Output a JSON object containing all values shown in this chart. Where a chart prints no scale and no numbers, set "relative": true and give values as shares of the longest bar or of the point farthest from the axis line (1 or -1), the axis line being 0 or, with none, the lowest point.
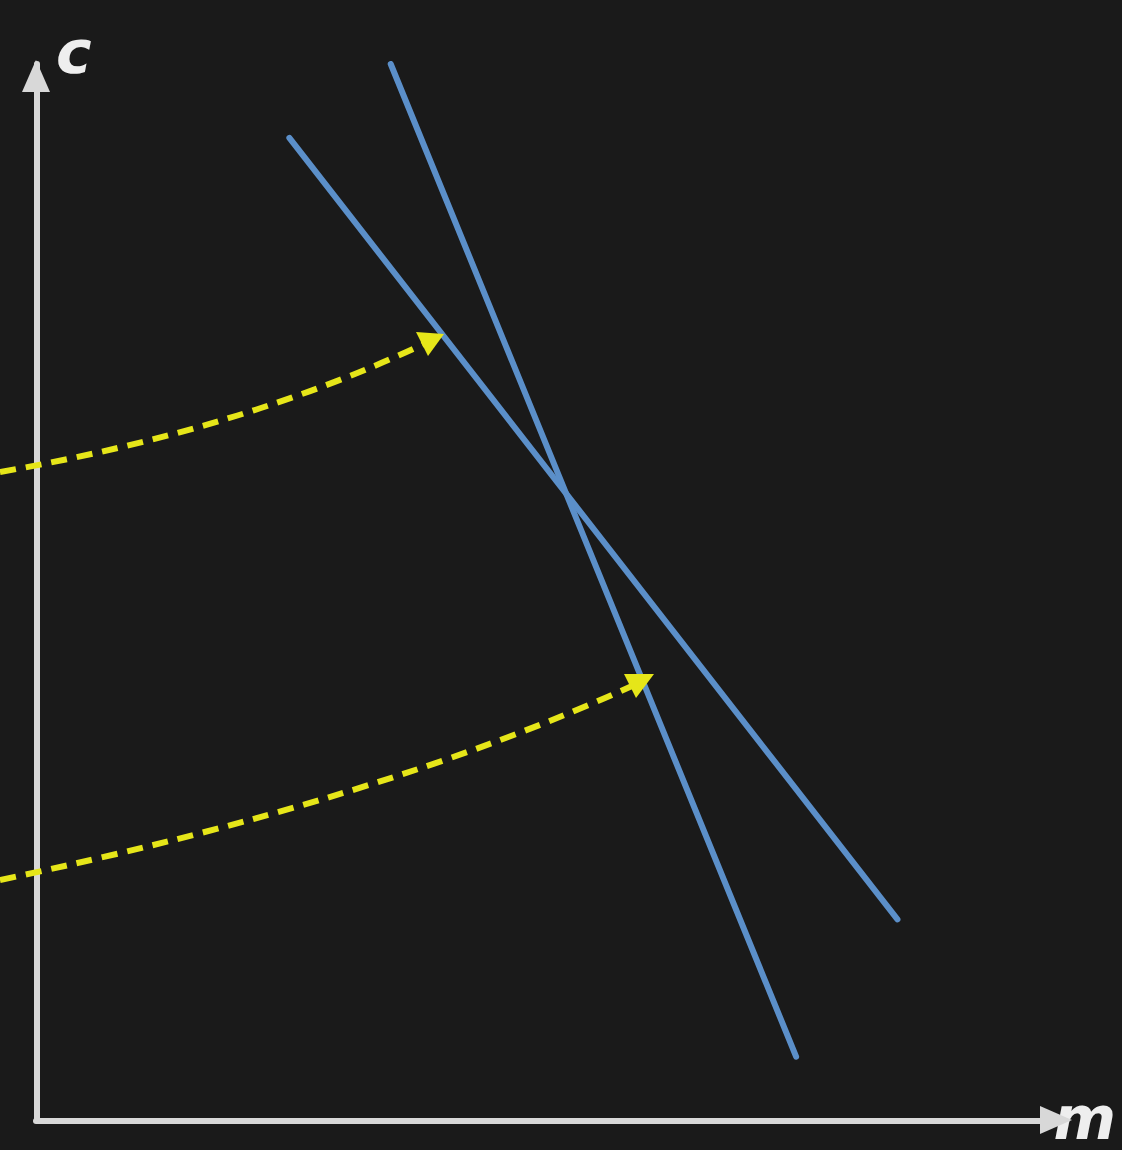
{
  "chart_data": {
    "type": "line",
    "relative": true,
    "xlabel": "m",
    "ylabel": "c",
    "categories": [
      null,
      null,
      null,
      null,
      null,
      null,
      null,
      null,
      null,
      null,
      null,
      null,
      null,
      null,
      null,
      null,
      null,
      null,
      null,
      null,
      null
    ],
    "series": [
      {
        "color": "#5b8fc9",
        "values": [
          null,
          null,
          null,
          null,
          null,
          0.93,
          null,
          null,
          null,
          null,
          null,
          null,
          null,
          null,
          null,
          null,
          null,
          0.19,
          null,
          null,
          null
        ]
      },
      {
        "color": "#5b8fc9",
        "values": [
          null,
          null,
          null,
          null,
          null,
          null,
          null,
          1,
          null,
          null,
          null,
          null,
          null,
          null,
          null,
          0.06,
          null,
          null,
          null,
          null,
          null
        ]
      }
    ],
    "grid": false,
    "marker": "none",
    "line_style": "solid"
  }
}
